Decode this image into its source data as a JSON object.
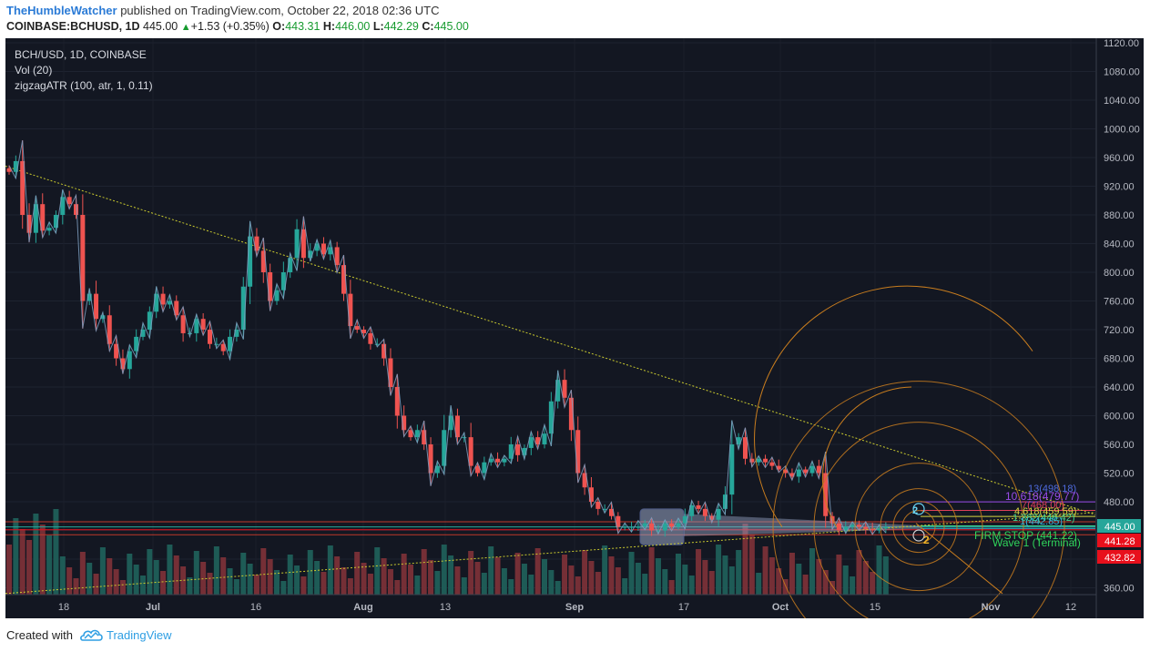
{
  "header": {
    "user": "TheHumbleWatcher",
    "published_text": " published on TradingView.com, October 22, 2018 02:36 UTC",
    "symbol": "COINBASE:BCHUSD, 1D",
    "last": "445.00",
    "change_arrow": "▲",
    "change": "+1.53 (+0.35%)",
    "open_label": "O:",
    "open": "443.31",
    "high_label": "H:",
    "high": "446.00",
    "low_label": "L:",
    "low": "442.29",
    "close_label": "C:",
    "close": "445.00"
  },
  "legend": {
    "title": "BCH/USD, 1D, COINBASE",
    "vol": "Vol (20)",
    "indicator": "zigzagATR (100, atr, 1, 0.11)"
  },
  "footer": {
    "created_with": "Created with",
    "brand": "TradingView",
    "logo_icon": "tradingview-cloud-icon"
  },
  "colors": {
    "background": "#131722",
    "up": "#26a69a",
    "down": "#ef5350",
    "zigzag": "#7f9fbf",
    "trendline": "#c9c92e",
    "arc": "#c97d1e",
    "price_label": "#26a69a",
    "red_label": "#e8101c"
  },
  "price_labels": {
    "current": "445.00",
    "r1": "441.28",
    "r2": "432.82"
  },
  "annotations": {
    "fib_13": "13(498.18)",
    "fib_10618": "10.618(479.77)",
    "fib_7": "7(468.00)",
    "fib_4618": "4.618(459.59)",
    "fib_1": "1.382(446.42)",
    "fib_2": "1(442.85)",
    "firm_stop": "FIRM STOP (441.22)",
    "wave1": "Wave 1 (Terminal)",
    "wave_label_2": "2",
    "wave_label_2b": "2"
  },
  "chart_data": {
    "type": "candlestick",
    "title": "BCH/USD, 1D, COINBASE",
    "y_axis": {
      "ticks": [
        1120,
        1080,
        1040,
        1000,
        960,
        920,
        880,
        840,
        800,
        760,
        720,
        680,
        640,
        600,
        560,
        520,
        480,
        440,
        400,
        360
      ],
      "tick_labels": [
        "1120.00",
        "1080.00",
        "1040.00",
        "1000.00",
        "960.00",
        "920.00",
        "880.00",
        "840.00",
        "800.00",
        "760.00",
        "720.00",
        "680.00",
        "640.00",
        "600.00",
        "560.00",
        "520.00",
        "480.00",
        "",
        "",
        "360.00"
      ],
      "ylim": [
        352,
        1125
      ]
    },
    "x_axis": {
      "labels": [
        "18",
        "Jul",
        "16",
        "Aug",
        "13",
        "Sep",
        "17",
        "Oct",
        "15",
        "Nov",
        "12"
      ],
      "bold": [
        false,
        true,
        false,
        true,
        false,
        true,
        false,
        true,
        false,
        true,
        false
      ],
      "start": "2018-06-12",
      "end": "2018-11-16"
    },
    "closes": [
      940,
      955,
      880,
      855,
      895,
      858,
      862,
      880,
      905,
      895,
      880,
      760,
      770,
      735,
      740,
      700,
      680,
      665,
      690,
      710,
      720,
      745,
      770,
      755,
      760,
      740,
      715,
      715,
      735,
      720,
      700,
      700,
      690,
      710,
      720,
      780,
      850,
      830,
      800,
      760,
      775,
      800,
      820,
      860,
      820,
      830,
      840,
      825,
      835,
      810,
      770,
      725,
      720,
      715,
      700,
      700,
      680,
      640,
      600,
      580,
      570,
      580,
      560,
      520,
      530,
      580,
      600,
      570,
      570,
      530,
      520,
      535,
      540,
      535,
      540,
      560,
      545,
      555,
      570,
      560,
      575,
      620,
      650,
      625,
      580,
      520,
      500,
      480,
      470,
      470,
      460,
      445,
      445,
      445,
      445,
      450,
      440,
      440,
      450,
      445,
      450,
      460,
      475,
      470,
      460,
      455,
      470,
      490,
      560,
      570,
      540,
      535,
      540,
      535,
      530,
      525,
      520,
      515,
      525,
      520,
      530,
      520,
      460,
      450,
      440,
      445,
      448,
      445,
      442,
      440,
      443,
      445
    ],
    "series": [
      {
        "name": "Vol (20)",
        "type": "volume"
      },
      {
        "name": "zigzagATR (100, atr, 1, 0.11)",
        "type": "line"
      }
    ]
  }
}
